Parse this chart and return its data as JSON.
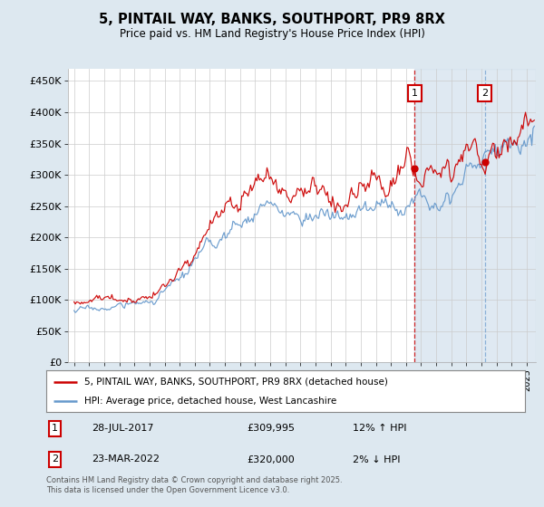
{
  "title": "5, PINTAIL WAY, BANKS, SOUTHPORT, PR9 8RX",
  "subtitle": "Price paid vs. HM Land Registry's House Price Index (HPI)",
  "ylabel_ticks": [
    "£0",
    "£50K",
    "£100K",
    "£150K",
    "£200K",
    "£250K",
    "£300K",
    "£350K",
    "£400K",
    "£450K"
  ],
  "ylim": [
    0,
    470000
  ],
  "ytick_vals": [
    0,
    50000,
    100000,
    150000,
    200000,
    250000,
    300000,
    350000,
    400000,
    450000
  ],
  "x_start_year": 1995,
  "x_end_year": 2025,
  "legend_line1": "5, PINTAIL WAY, BANKS, SOUTHPORT, PR9 8RX (detached house)",
  "legend_line2": "HPI: Average price, detached house, West Lancashire",
  "annotation1_label": "1",
  "annotation1_date": "28-JUL-2017",
  "annotation1_price": "£309,995",
  "annotation1_hpi": "12% ↑ HPI",
  "annotation1_year": 2017.57,
  "annotation1_value": 309995,
  "annotation2_label": "2",
  "annotation2_date": "23-MAR-2022",
  "annotation2_price": "£320,000",
  "annotation2_hpi": "2% ↓ HPI",
  "annotation2_year": 2022.22,
  "annotation2_value": 320000,
  "red_color": "#cc0000",
  "blue_color": "#6699cc",
  "bg_color": "#dde8f0",
  "plot_bg": "#ffffff",
  "grid_color": "#cccccc",
  "shade_color": "#c5d8e8",
  "footnote": "Contains HM Land Registry data © Crown copyright and database right 2025.\nThis data is licensed under the Open Government Licence v3.0."
}
